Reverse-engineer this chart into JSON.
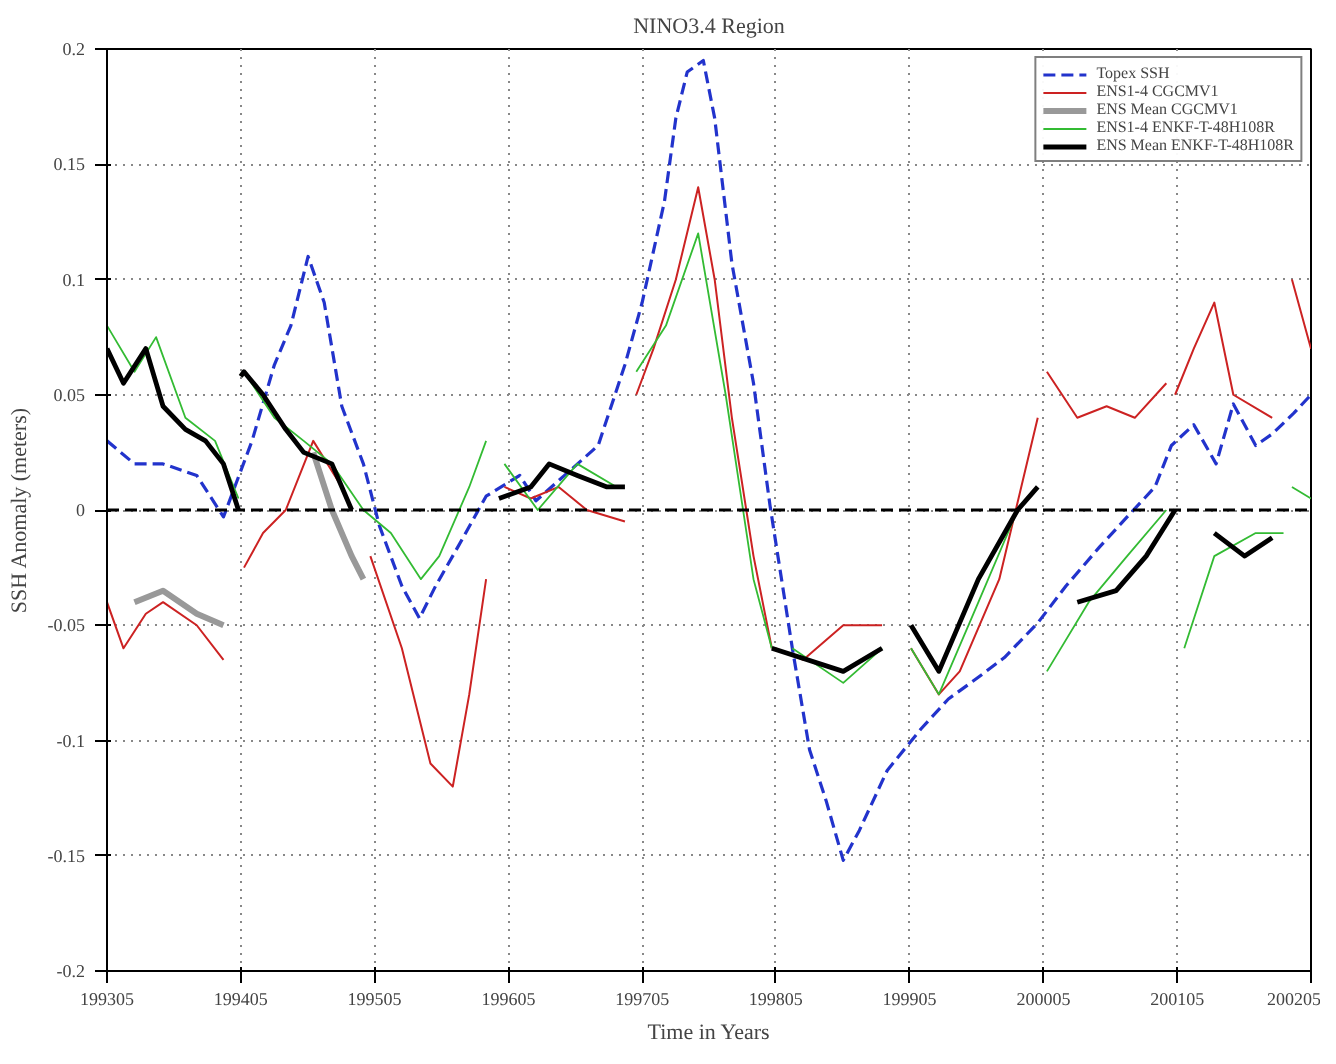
{
  "chart_data": {
    "type": "line",
    "title": "NINO3.4 Region",
    "xlabel": "Time in Years",
    "ylabel": "SSH Anomaly (meters)",
    "xlim": [
      "1993-05",
      "2002-05"
    ],
    "ylim": [
      -0.2,
      0.2
    ],
    "xticks": [
      {
        "value": "1993-05",
        "label": "199305"
      },
      {
        "value": "1994-05",
        "label": "199405"
      },
      {
        "value": "1995-05",
        "label": "199505"
      },
      {
        "value": "1996-05",
        "label": "199605"
      },
      {
        "value": "1997-05",
        "label": "199705"
      },
      {
        "value": "1998-05",
        "label": "199805"
      },
      {
        "value": "1999-05",
        "label": "199905"
      },
      {
        "value": "2000-05",
        "label": "200005"
      },
      {
        "value": "2001-05",
        "label": "200105"
      },
      {
        "value": "2002-05",
        "label": "200205"
      }
    ],
    "yticks": [
      -0.2,
      -0.15,
      -0.1,
      -0.05,
      0,
      0.05,
      0.1,
      0.15,
      0.2
    ],
    "grid": true,
    "legend": "top right",
    "marker": "none",
    "ref_lines": [
      {
        "axis": "y",
        "value": 0,
        "label": null,
        "color": "#000000",
        "line_style": "dashed"
      }
    ],
    "series": [
      {
        "name": "Topex SSH",
        "color": "#2233cc",
        "line_style": "dashed",
        "x": [
          "1993-05-01",
          "1993-07-15",
          "1993-10-01",
          "1994-01-01",
          "1994-03-15",
          "1994-06-01",
          "1994-08-01",
          "1994-09-15",
          "1994-11-01",
          "1994-12-15",
          "1995-02-01",
          "1995-04-01",
          "1995-05-15",
          "1995-07-15",
          "1995-09-01",
          "1995-10-15",
          "1995-12-15",
          "1996-03-01",
          "1996-06-01",
          "1996-07-15",
          "1996-10-01",
          "1997-01-01",
          "1997-03-15",
          "1997-05-01",
          "1997-07-01",
          "1997-08-01",
          "1997-09-01",
          "1997-10-15",
          "1997-11-15",
          "1998-01-01",
          "1998-03-01",
          "1998-04-15",
          "1998-06-15",
          "1998-08-01",
          "1998-09-15",
          "1998-11-01",
          "1998-12-15",
          "1999-03-01",
          "1999-06-01",
          "1999-08-15",
          "1999-11-01",
          "2000-01-15",
          "2000-04-15",
          "2000-07-01",
          "2000-10-01",
          "2000-12-15",
          "2001-03-01",
          "2001-04-15",
          "2001-06-15",
          "2001-08-15",
          "2001-10-01",
          "2001-12-01",
          "2002-01-15",
          "2002-03-15",
          "2002-05-01"
        ],
        "values": [
          0.03,
          0.02,
          0.02,
          0.015,
          -0.003,
          0.03,
          0.063,
          0.08,
          0.11,
          0.09,
          0.045,
          0.02,
          -0.007,
          -0.033,
          -0.047,
          -0.033,
          -0.016,
          0.006,
          0.015,
          0.004,
          0.015,
          0.028,
          0.063,
          0.09,
          0.134,
          0.17,
          0.19,
          0.195,
          0.17,
          0.107,
          0.055,
          0.002,
          -0.06,
          -0.104,
          -0.126,
          -0.152,
          -0.139,
          -0.113,
          -0.095,
          -0.082,
          -0.073,
          -0.064,
          -0.049,
          -0.033,
          -0.016,
          -0.003,
          0.01,
          0.028,
          0.037,
          0.02,
          0.046,
          0.028,
          0.033,
          0.042,
          0.05
        ]
      },
      {
        "name": "ENS1-4 CGCMV1",
        "color": "#cc2222",
        "x": [
          "1993-05-01",
          "1993-06-15",
          "1993-08-15",
          "1993-10-01",
          "1994-01-01",
          "1994-03-15",
          "1994-04-15",
          "1994-05-10",
          "1994-07-01",
          "1994-09-01",
          "1994-11-15",
          "1995-02-01",
          "1995-03-15",
          "1995-04-20",
          "1995-07-15",
          "1995-10-01",
          "1995-12-01",
          "1996-01-15",
          "1996-03-01",
          "1996-04-15",
          "1996-04-20",
          "1996-07-01",
          "1996-09-15",
          "1996-12-01",
          "1997-03-15",
          "1997-04-01",
          "1997-04-15",
          "1997-06-01",
          "1997-08-01",
          "1997-10-01",
          "1997-11-15",
          "1998-01-01",
          "1998-03-01",
          "1998-04-20",
          "1998-04-25",
          "1998-05-01",
          "1998-07-15",
          "1998-11-01",
          "1999-02-15",
          "1999-04-01",
          "1999-05-05",
          "1999-07-20",
          "1999-09-15",
          "2000-01-01",
          "2000-04-15",
          "2000-04-25",
          "2000-05-10",
          "2000-08-01",
          "2000-10-20",
          "2001-01-05",
          "2001-04-01",
          "2001-04-15",
          "2001-04-25",
          "2001-06-15",
          "2001-08-10",
          "2001-10-01",
          "2002-01-15",
          "2002-03-01",
          "2002-03-10",
          "2002-05-01"
        ],
        "values": [
          -0.04,
          -0.06,
          -0.045,
          -0.04,
          -0.05,
          -0.065,
          null,
          -0.025,
          -0.01,
          0.0,
          0.03,
          0.01,
          null,
          -0.02,
          -0.06,
          -0.11,
          -0.12,
          -0.08,
          -0.03,
          null,
          0.01,
          0.005,
          0.01,
          0.0,
          -0.005,
          null,
          0.05,
          0.07,
          0.1,
          0.14,
          0.1,
          0.04,
          -0.02,
          -0.06,
          null,
          -0.06,
          -0.065,
          -0.05,
          -0.05,
          null,
          -0.06,
          -0.08,
          -0.07,
          -0.03,
          0.04,
          null,
          0.06,
          0.04,
          0.045,
          0.04,
          0.055,
          null,
          0.05,
          0.07,
          0.09,
          0.05,
          0.04,
          null,
          0.1,
          0.07
        ]
      },
      {
        "name": "ENS Mean CGCMV1",
        "color": "#999999",
        "x": [
          "1993-07-15",
          "1993-10-01",
          "1994-01-01",
          "1994-03-15",
          "1994-07-01",
          "1994-11-15",
          "1995-01-05",
          "1995-02-28",
          "1995-04-01"
        ],
        "values": [
          -0.04,
          -0.035,
          -0.045,
          -0.05,
          null,
          0.025,
          0.0,
          -0.02,
          -0.03
        ]
      },
      {
        "name": "ENS1-4 ENKF-T-48H108R",
        "color": "#33bb33",
        "x": [
          "1993-05-01",
          "1993-07-15",
          "1993-09-12",
          "1993-12-01",
          "1994-02-20",
          "1994-04-25",
          "1994-04-28",
          "1994-05-10",
          "1994-08-01",
          "1994-10-20",
          "1995-01-05",
          "1995-04-01",
          "1995-06-15",
          "1995-09-05",
          "1995-10-25",
          "1996-01-15",
          "1996-03-01",
          "1996-04-10",
          "1996-04-20",
          "1996-07-20",
          "1996-11-05",
          "1997-02-20",
          "1997-04-01",
          "1997-04-15",
          "1997-07-05",
          "1997-10-01",
          "1997-12-15",
          "1998-03-01",
          "1998-04-20",
          "1998-05-20",
          "1998-06-15",
          "1998-11-01",
          "1999-02-15",
          "1999-04-01",
          "1999-05-05",
          "1999-07-20",
          "1999-11-05",
          "2000-02-20",
          "2000-04-20",
          "2000-05-10",
          "2000-09-01",
          "2000-12-15",
          "2001-04-01",
          "2001-04-15",
          "2001-05-20",
          "2001-08-10",
          "2001-12-01",
          "2002-02-15",
          "2002-03-01",
          "2002-03-10",
          "2002-05-01"
        ],
        "values": [
          0.08,
          0.06,
          0.075,
          0.04,
          0.03,
          0.005,
          null,
          0.06,
          0.04,
          0.03,
          0.02,
          0.0,
          -0.01,
          -0.03,
          -0.02,
          0.01,
          0.03,
          null,
          0.02,
          0.0,
          0.02,
          0.01,
          null,
          0.06,
          0.08,
          0.12,
          0.05,
          -0.03,
          -0.06,
          null,
          -0.06,
          -0.075,
          -0.06,
          null,
          -0.06,
          -0.08,
          -0.04,
          0.0,
          null,
          -0.07,
          -0.04,
          -0.02,
          0.0,
          null,
          -0.06,
          -0.02,
          -0.01,
          -0.01,
          null,
          0.01,
          0.005
        ]
      },
      {
        "name": "ENS Mean ENKF-T-48H108R",
        "color": "#000000",
        "x": [
          "1993-05-01",
          "1993-06-15",
          "1993-08-15",
          "1993-10-01",
          "1993-12-01",
          "1994-01-25",
          "1994-03-15",
          "1994-04-25",
          "1994-04-28",
          "1994-05-01",
          "1994-05-10",
          "1994-07-01",
          "1994-09-01",
          "1994-10-20",
          "1995-01-05",
          "1995-02-28",
          "1996-03-15",
          "1996-04-05",
          "1996-07-01",
          "1996-08-20",
          "1996-11-05",
          "1997-01-25",
          "1997-03-15",
          "1998-03-15",
          "1998-04-20",
          "1998-11-01",
          "1999-02-15",
          "1999-04-01",
          "1999-05-05",
          "1999-07-20",
          "1999-11-05",
          "2000-02-20",
          "2000-04-15",
          "2000-05-25",
          "2000-08-01",
          "2000-11-15",
          "2001-02-05",
          "2001-04-25",
          "2001-07-01",
          "2001-08-10",
          "2001-11-01",
          "2002-01-15"
        ],
        "values": [
          0.07,
          0.055,
          0.07,
          0.045,
          0.035,
          0.03,
          0.02,
          0.0,
          null,
          0.058,
          0.06,
          0.05,
          0.035,
          0.025,
          0.02,
          0.0,
          null,
          0.005,
          0.01,
          0.02,
          0.015,
          0.01,
          0.01,
          null,
          -0.06,
          -0.07,
          -0.06,
          null,
          -0.05,
          -0.07,
          -0.03,
          0.0,
          0.01,
          null,
          -0.04,
          -0.035,
          -0.02,
          0.0,
          null,
          -0.01,
          -0.02,
          -0.012
        ]
      }
    ]
  }
}
